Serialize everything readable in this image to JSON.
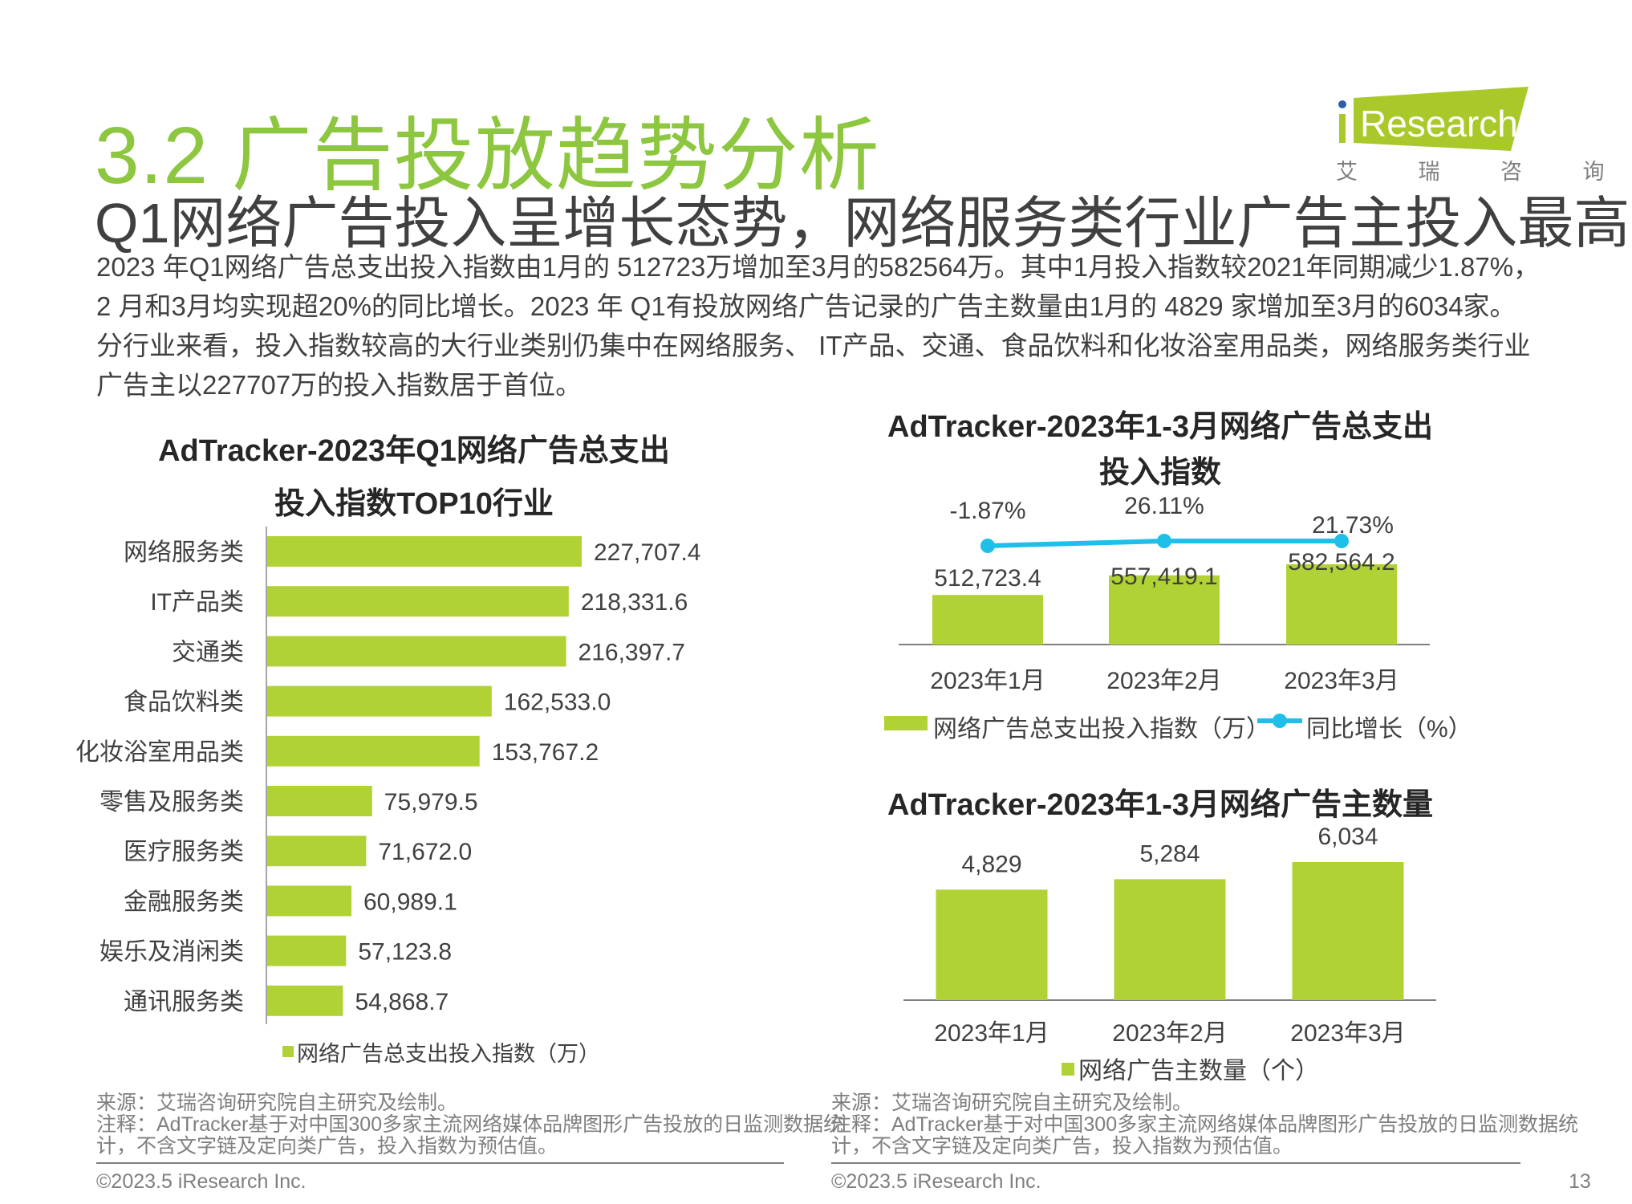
{
  "header": {
    "title": "3.2 广告投放趋势分析",
    "subtitle": "Q1网络广告投入呈增长态势，网络服务类行业广告主投入最高",
    "body": "2023 年Q1网络广告总支出投入指数由1月的 512723万增加至3月的582564万。其中1月投入指数较2021年同期减少1.87%，2 月和3月均实现超20%的同比增长。2023 年 Q1有投放网络广告记录的广告主数量由1月的 4829 家增加至3月的6034家。分行业来看，投入指数较高的大行业类别仍集中在网络服务、 IT产品、交通、食品饮料和化妆浴室用品类，网络服务类行业广告主以227707万的投入指数居于首位。"
  },
  "logo": {
    "text": "iResearch",
    "cn": "艾 瑞 咨 询",
    "color": "#a8c929",
    "dot_color": "#2c5fa8"
  },
  "colors": {
    "bar": "#b0d235",
    "line": "#1ec0ea",
    "title": "#8dc63f"
  },
  "chart_data": [
    {
      "type": "bar",
      "orientation": "horizontal",
      "title_lines": [
        "AdTracker-2023年Q1网络广告总支出",
        "投入指数TOP10行业"
      ],
      "categories": [
        "网络服务类",
        "IT产品类",
        "交通类",
        "食品饮料类",
        "化妆浴室用品类",
        "零售及服务类",
        "医疗服务类",
        "金融服务类",
        "娱乐及消闲类",
        "通讯服务类"
      ],
      "values": [
        227707.4,
        218331.6,
        216397.7,
        162533.0,
        153767.2,
        75979.5,
        71672.0,
        60989.1,
        57123.8,
        54868.7
      ],
      "value_labels": [
        "227,707.4",
        "218,331.6",
        "216,397.7",
        "162,533.0",
        "153,767.2",
        "75,979.5",
        "71,672.0",
        "60,989.1",
        "57,123.8",
        "54,868.7"
      ],
      "legend": "网络广告总支出投入指数（万）",
      "xlim": [
        0,
        227707.4
      ]
    },
    {
      "type": "bar+line",
      "title_lines": [
        "AdTracker-2023年1-3月网络广告总支出",
        "投入指数"
      ],
      "categories": [
        "2023年1月",
        "2023年2月",
        "2023年3月"
      ],
      "series": [
        {
          "name": "网络广告总支出投入指数（万）",
          "type": "bar",
          "values": [
            512723.4,
            557419.1,
            582564.2
          ],
          "labels": [
            "512,723.4",
            "557,419.1",
            "582,564.2"
          ]
        },
        {
          "name": "同比增长（%）",
          "type": "line",
          "values": [
            -1.87,
            26.11,
            21.73
          ],
          "labels": [
            "-1.87%",
            "26.11%",
            "21.73%"
          ]
        }
      ],
      "ylim": [
        400000,
        582564.2
      ]
    },
    {
      "type": "bar",
      "title_lines": [
        "AdTracker-2023年1-3月网络广告主数量"
      ],
      "categories": [
        "2023年1月",
        "2023年2月",
        "2023年3月"
      ],
      "values": [
        4829,
        5284,
        6034
      ],
      "value_labels": [
        "4,829",
        "5,284",
        "6,034"
      ],
      "legend": "网络广告主数量（个）",
      "ylim": [
        0,
        6034
      ]
    }
  ],
  "footer": {
    "source": "来源：艾瑞咨询研究院自主研究及绘制。",
    "note1": "注释：AdTracker基于对中国300多家主流网络媒体品牌图形广告投放的日监测数据统",
    "note2": "计，不含文字链及定向类广告，投入指数为预估值。",
    "copyright": "©2023.5 iResearch Inc.",
    "page": "13"
  }
}
